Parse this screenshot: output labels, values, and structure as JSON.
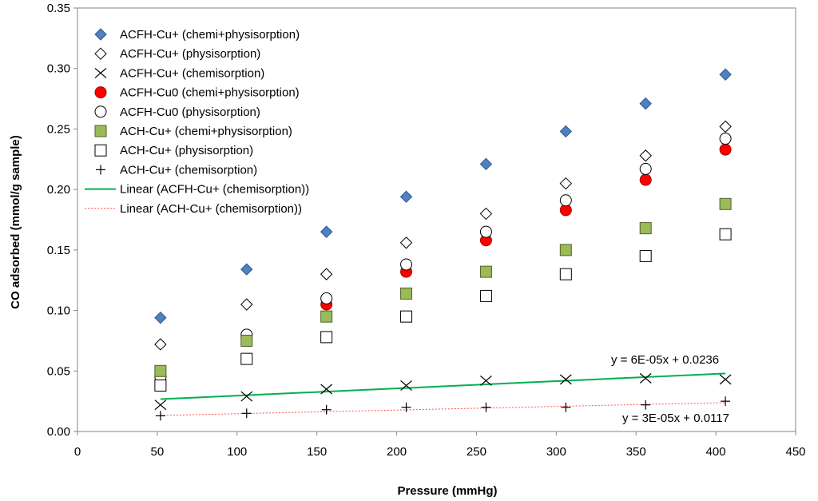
{
  "chart_data": {
    "type": "scatter",
    "xlabel": "Pressure (mmHg)",
    "ylabel": "CO adsorbed (mmol/g sample)",
    "xlim": [
      0,
      450
    ],
    "ylim": [
      0,
      0.35
    ],
    "xticks": [
      0,
      50,
      100,
      150,
      200,
      250,
      300,
      350,
      400,
      450
    ],
    "xtick_labels": [
      "0",
      "50",
      "100",
      "150",
      "200",
      "250",
      "300",
      "350",
      "400",
      "450"
    ],
    "yticks": [
      0,
      0.05,
      0.1,
      0.15,
      0.2,
      0.25,
      0.3,
      0.35
    ],
    "ytick_labels": [
      "0.00",
      "0.05",
      "0.10",
      "0.15",
      "0.20",
      "0.25",
      "0.30",
      "0.35"
    ],
    "grid": false,
    "legend_position": "top-left",
    "colors": {
      "diamond_fill": "#4f81bd",
      "diamond_stroke": "#2f5597",
      "red": "#ff0000",
      "green_square": "#9bbb59",
      "trend_green": "#00b050",
      "trend_red": "#ff5050"
    },
    "series": [
      {
        "name": "ACFH-Cu+ (chemi+physisorption)",
        "marker": "diamond-filled",
        "x": [
          52,
          106,
          156,
          206,
          256,
          306,
          356,
          406
        ],
        "y": [
          0.094,
          0.134,
          0.165,
          0.194,
          0.221,
          0.248,
          0.271,
          0.295
        ]
      },
      {
        "name": "ACFH-Cu+ (physisorption)",
        "marker": "diamond-open",
        "x": [
          52,
          106,
          156,
          206,
          256,
          306,
          356,
          406
        ],
        "y": [
          0.072,
          0.105,
          0.13,
          0.156,
          0.18,
          0.205,
          0.228,
          0.252
        ]
      },
      {
        "name": "ACFH-Cu+ (chemisorption)",
        "marker": "x",
        "x": [
          52,
          106,
          156,
          206,
          256,
          306,
          356,
          406
        ],
        "y": [
          0.022,
          0.029,
          0.035,
          0.038,
          0.042,
          0.043,
          0.044,
          0.043
        ]
      },
      {
        "name": "ACFH-Cu0 (chemi+physisorption)",
        "marker": "circle-red",
        "x": [
          52,
          106,
          156,
          206,
          256,
          306,
          356,
          406
        ],
        "y": [
          0.046,
          0.078,
          0.105,
          0.132,
          0.158,
          0.183,
          0.208,
          0.233
        ]
      },
      {
        "name": "ACFH-Cu0 (physisorption)",
        "marker": "circle-open",
        "x": [
          52,
          106,
          156,
          206,
          256,
          306,
          356,
          406
        ],
        "y": [
          0.045,
          0.08,
          0.11,
          0.138,
          0.165,
          0.191,
          0.217,
          0.242
        ]
      },
      {
        "name": "ACH-Cu+ (chemi+physisorption)",
        "marker": "square-green",
        "x": [
          52,
          106,
          156,
          206,
          256,
          306,
          356,
          406
        ],
        "y": [
          0.05,
          0.075,
          0.095,
          0.114,
          0.132,
          0.15,
          0.168,
          0.188
        ]
      },
      {
        "name": "ACH-Cu+ (physisorption)",
        "marker": "square-open",
        "x": [
          52,
          106,
          156,
          206,
          256,
          306,
          356,
          406
        ],
        "y": [
          0.038,
          0.06,
          0.078,
          0.095,
          0.112,
          0.13,
          0.145,
          0.163
        ]
      },
      {
        "name": "ACH-Cu+ (chemisorption)",
        "marker": "plus",
        "x": [
          52,
          106,
          156,
          206,
          256,
          306,
          356,
          406
        ],
        "y": [
          0.013,
          0.015,
          0.018,
          0.02,
          0.02,
          0.02,
          0.022,
          0.025
        ]
      }
    ],
    "trendlines": [
      {
        "name": "Linear (ACFH-Cu+ (chemisorption))",
        "style": "solid-green",
        "slope": 6e-05,
        "intercept": 0.0236,
        "x_range": [
          52,
          406
        ],
        "equation": "y = 6E-05x + 0.0236"
      },
      {
        "name": "Linear (ACH-Cu+ (chemisorption))",
        "style": "dotted-red",
        "slope": 3e-05,
        "intercept": 0.0117,
        "x_range": [
          52,
          406
        ],
        "equation": "y = 3E-05x + 0.0117"
      }
    ]
  }
}
